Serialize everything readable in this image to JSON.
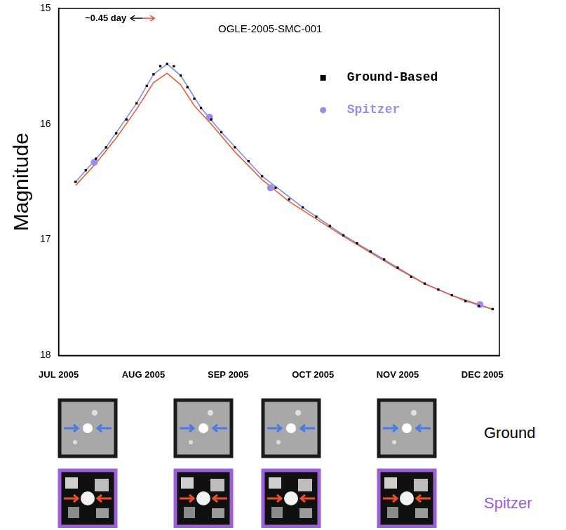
{
  "chart_data": {
    "type": "scatter",
    "title": "OGLE-2005-SMC-001",
    "y_label": "Magnitude",
    "annotation": "~0.45 day",
    "xlim": [
      7,
      12.2
    ],
    "xticks": [
      {
        "value": 7,
        "label": "JUL 2005"
      },
      {
        "value": 8,
        "label": "AUG 2005"
      },
      {
        "value": 9,
        "label": "SEP 2005"
      },
      {
        "value": 10,
        "label": "OCT 2005"
      },
      {
        "value": 11,
        "label": "NOV 2005"
      },
      {
        "value": 12,
        "label": "DEC 2005"
      }
    ],
    "ylim": [
      18,
      15
    ],
    "yticks": [
      15,
      16,
      17,
      18
    ],
    "grid": false,
    "legend": "top-right",
    "series": [
      {
        "name": "Ground-Based",
        "color": "#000000",
        "type": "scatter",
        "marker": "square",
        "x": [
          7.2,
          7.32,
          7.44,
          7.56,
          7.68,
          7.8,
          7.92,
          8.04,
          8.12,
          8.2,
          8.28,
          8.36,
          8.44,
          8.52,
          8.6,
          8.68,
          8.8,
          8.92,
          9.08,
          9.24,
          9.4,
          9.56,
          9.72,
          9.88,
          10.04,
          10.2,
          10.36,
          10.52,
          10.68,
          10.84,
          11.0,
          11.16,
          11.32,
          11.48,
          11.64,
          11.8,
          11.96,
          12.12
        ],
        "values": [
          16.5,
          16.4,
          16.3,
          16.2,
          16.08,
          15.96,
          15.82,
          15.67,
          15.57,
          15.5,
          15.48,
          15.5,
          15.58,
          15.68,
          15.78,
          15.86,
          15.96,
          16.07,
          16.2,
          16.32,
          16.45,
          16.55,
          16.65,
          16.72,
          16.8,
          16.88,
          16.96,
          17.03,
          17.1,
          17.17,
          17.24,
          17.32,
          17.38,
          17.43,
          17.48,
          17.53,
          17.57,
          17.6
        ]
      },
      {
        "name": "Spitzer",
        "color": "#9d8ce8",
        "type": "scatter",
        "marker": "circle",
        "x": [
          7.42,
          8.78,
          9.5,
          11.97
        ],
        "values": [
          16.33,
          15.94,
          16.55,
          17.56
        ]
      },
      {
        "color": "#e8603c",
        "type": "line",
        "line_style": "solid",
        "x": [
          7.2,
          7.44,
          7.68,
          7.92,
          8.12,
          8.28,
          8.44,
          8.6,
          8.8,
          9.08,
          9.4,
          9.72,
          10.04,
          10.36,
          10.68,
          11.0,
          11.32,
          11.64,
          11.96,
          12.12
        ],
        "values": [
          16.53,
          16.34,
          16.12,
          15.87,
          15.64,
          15.56,
          15.66,
          15.84,
          16.0,
          16.24,
          16.48,
          16.67,
          16.82,
          16.97,
          17.11,
          17.25,
          17.38,
          17.48,
          17.56,
          17.6
        ]
      },
      {
        "color": "#7f8fe0",
        "type": "line",
        "line_style": "solid",
        "x": [
          7.2,
          7.56,
          7.92,
          8.12,
          8.28,
          8.44,
          8.68,
          8.92,
          9.4,
          9.88,
          10.36,
          10.84,
          11.32,
          11.8,
          12.12
        ],
        "values": [
          16.5,
          16.2,
          15.82,
          15.57,
          15.48,
          15.58,
          15.86,
          16.07,
          16.45,
          16.72,
          16.96,
          17.17,
          17.38,
          17.53,
          17.6
        ]
      }
    ]
  },
  "image_strip": {
    "rows": [
      "Ground",
      "Spitzer"
    ]
  }
}
